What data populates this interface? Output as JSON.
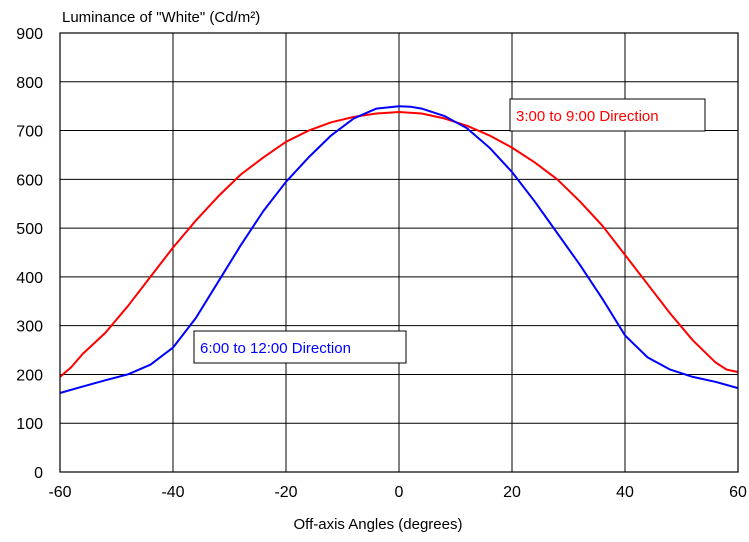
{
  "chart_data": {
    "type": "line",
    "title": "",
    "ylabel": "Luminance of \"White\" (Cd/m²)",
    "xlabel": "Off-axis Angles (degrees)",
    "xlim": [
      -60,
      60
    ],
    "ylim": [
      0,
      900
    ],
    "x_ticks": [
      -60,
      -40,
      -20,
      0,
      20,
      40,
      60
    ],
    "y_ticks": [
      0,
      100,
      200,
      300,
      400,
      500,
      600,
      700,
      800,
      900
    ],
    "grid": true,
    "series": [
      {
        "name": "3:00 to 9:00 Direction",
        "color": "#ff0000",
        "x": [
          -60,
          -58,
          -56,
          -52,
          -48,
          -44,
          -40,
          -36,
          -32,
          -28,
          -24,
          -20,
          -16,
          -12,
          -8,
          -4,
          0,
          4,
          8,
          12,
          16,
          20,
          24,
          28,
          32,
          36,
          40,
          44,
          48,
          52,
          56,
          58,
          60
        ],
        "y": [
          195,
          215,
          242,
          285,
          340,
          400,
          460,
          515,
          565,
          610,
          645,
          677,
          700,
          717,
          728,
          735,
          738,
          735,
          725,
          710,
          690,
          665,
          635,
          600,
          555,
          505,
          445,
          385,
          325,
          270,
          225,
          210,
          205
        ]
      },
      {
        "name": "6:00 to 12:00 Direction",
        "color": "#0000ff",
        "x": [
          -60,
          -56,
          -52,
          -48,
          -44,
          -40,
          -36,
          -32,
          -28,
          -24,
          -20,
          -16,
          -12,
          -8,
          -4,
          0,
          2,
          4,
          8,
          12,
          16,
          20,
          24,
          28,
          32,
          36,
          40,
          44,
          48,
          52,
          56,
          60
        ],
        "y": [
          162,
          175,
          188,
          200,
          220,
          255,
          315,
          390,
          465,
          535,
          595,
          645,
          690,
          725,
          745,
          750,
          749,
          745,
          730,
          705,
          665,
          615,
          555,
          490,
          425,
          355,
          280,
          235,
          210,
          195,
          185,
          172
        ]
      }
    ],
    "annotations": [
      {
        "text": "3:00 to 9:00 Direction",
        "color": "#ff0000"
      },
      {
        "text": "6:00 to 12:00 Direction",
        "color": "#0000ff"
      }
    ]
  }
}
